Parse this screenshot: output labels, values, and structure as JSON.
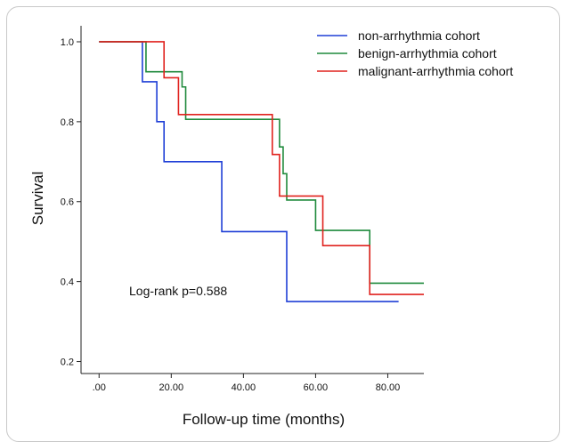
{
  "chart_data": {
    "type": "line",
    "step": true,
    "title": "",
    "xlabel": "Follow-up time (months)",
    "ylabel": "Survival",
    "xlim": [
      -5,
      90
    ],
    "ylim": [
      0.17,
      1.04
    ],
    "x_ticks": [
      0,
      20,
      40,
      60,
      80
    ],
    "x_tick_labels": [
      ".00",
      "20.00",
      "40.00",
      "60.00",
      "80.00"
    ],
    "y_ticks": [
      0.2,
      0.4,
      0.6,
      0.8,
      1.0
    ],
    "y_tick_labels": [
      "0.2",
      "0.4",
      "0.6",
      "0.8",
      "1.0"
    ],
    "grid": false,
    "legend_position": "top-right",
    "annotation": "Log-rank p=0.588",
    "series": [
      {
        "name": "non-arrhythmia cohort",
        "color": "#1f3fd6",
        "points": [
          [
            0,
            1.0
          ],
          [
            12,
            0.9
          ],
          [
            16,
            0.8
          ],
          [
            18,
            0.7
          ],
          [
            34,
            0.525
          ],
          [
            52,
            0.35
          ],
          [
            83,
            0.35
          ]
        ]
      },
      {
        "name": "benign-arrhythmia cohort",
        "color": "#1f8a3c",
        "points": [
          [
            0,
            1.0
          ],
          [
            13,
            0.925
          ],
          [
            23,
            0.887
          ],
          [
            24,
            0.806
          ],
          [
            50,
            0.737
          ],
          [
            51,
            0.67
          ],
          [
            52,
            0.604
          ],
          [
            60,
            0.528
          ],
          [
            75,
            0.396
          ],
          [
            90,
            0.396
          ]
        ]
      },
      {
        "name": "malignant-arrhythmia cohort",
        "color": "#e0221e",
        "points": [
          [
            0,
            1.0
          ],
          [
            18,
            0.91
          ],
          [
            22,
            0.818
          ],
          [
            48,
            0.718
          ],
          [
            50,
            0.614
          ],
          [
            62,
            0.49
          ],
          [
            75,
            0.368
          ],
          [
            90,
            0.368
          ]
        ]
      }
    ]
  }
}
